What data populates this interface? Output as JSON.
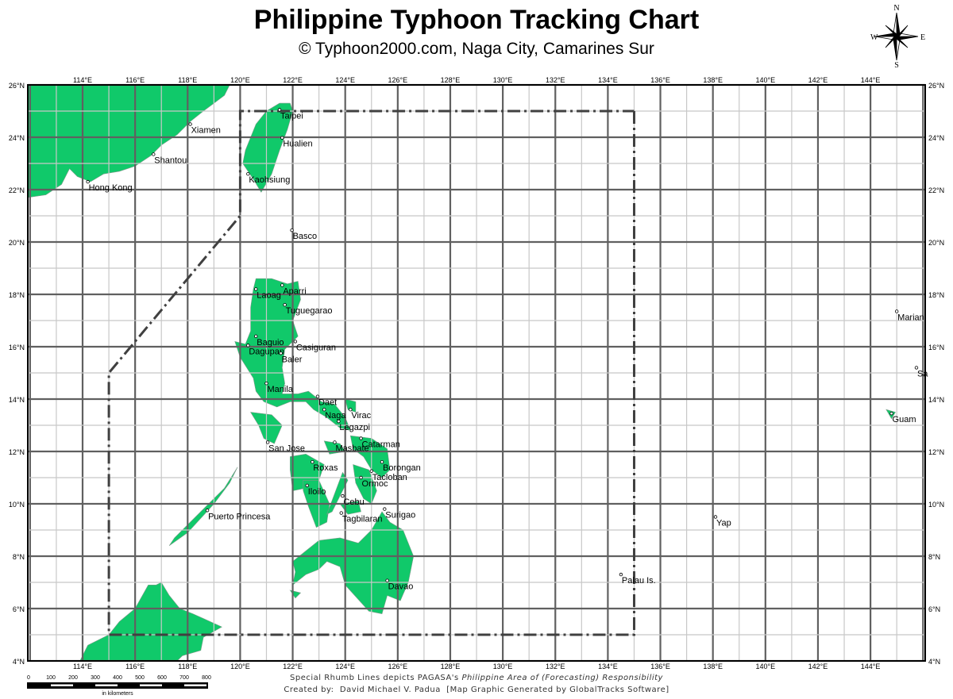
{
  "header": {
    "title": "Philippine Typhoon Tracking Chart",
    "subtitle": "© Typhoon2000.com, Naga City, Camarines Sur"
  },
  "compass": {
    "icon": "compass-rose-icon",
    "n": "N",
    "s": "S",
    "e": "E",
    "w": "W"
  },
  "map": {
    "extent": {
      "lon": [
        111.9,
        146.1
      ],
      "lat": [
        4,
        26
      ]
    },
    "land_color": "#10c96a",
    "grid_minor_color": "#c8c8c8",
    "grid_major_color": "#606060",
    "par_line_color": "#404040",
    "lat_labels": [
      "26°N",
      "24°N",
      "22°N",
      "20°N",
      "18°N",
      "16°N",
      "14°N",
      "12°N",
      "10°N",
      "8°N",
      "6°N",
      "4°N"
    ],
    "lon_labels": [
      "114°E",
      "116°E",
      "118°E",
      "120°E",
      "122°E",
      "124°E",
      "126°E",
      "128°E",
      "130°E",
      "132°E",
      "134°E",
      "136°E",
      "138°E",
      "140°E",
      "142°E",
      "144°E"
    ],
    "par_boundary": [
      [
        135,
        25
      ],
      [
        135,
        5
      ],
      [
        115,
        5
      ],
      [
        115,
        15
      ],
      [
        120,
        21
      ],
      [
        120,
        25
      ],
      [
        135,
        25
      ]
    ],
    "cities": [
      {
        "name": "Taipei",
        "lon": 121.5,
        "lat": 25.05
      },
      {
        "name": "Hualien",
        "lon": 121.6,
        "lat": 23.98
      },
      {
        "name": "Kaohsiung",
        "lon": 120.3,
        "lat": 22.6
      },
      {
        "name": "Basco",
        "lon": 121.97,
        "lat": 20.45
      },
      {
        "name": "Xiamen",
        "lon": 118.1,
        "lat": 24.5
      },
      {
        "name": "Shantou",
        "lon": 116.7,
        "lat": 23.35
      },
      {
        "name": "Hong Kong",
        "lon": 114.2,
        "lat": 22.3
      },
      {
        "name": "Laoag",
        "lon": 120.6,
        "lat": 18.2
      },
      {
        "name": "Aparri",
        "lon": 121.6,
        "lat": 18.35
      },
      {
        "name": "Tuguegarao",
        "lon": 121.7,
        "lat": 17.6
      },
      {
        "name": "Baguio",
        "lon": 120.6,
        "lat": 16.4
      },
      {
        "name": "Dagupan",
        "lon": 120.3,
        "lat": 16.05
      },
      {
        "name": "Casiguran",
        "lon": 122.1,
        "lat": 16.2
      },
      {
        "name": "Baler",
        "lon": 121.55,
        "lat": 15.75
      },
      {
        "name": "Manila",
        "lon": 121.0,
        "lat": 14.6
      },
      {
        "name": "Daet",
        "lon": 122.95,
        "lat": 14.1
      },
      {
        "name": "Naga",
        "lon": 123.2,
        "lat": 13.6
      },
      {
        "name": "Virac",
        "lon": 124.2,
        "lat": 13.6
      },
      {
        "name": "Legazpi",
        "lon": 123.75,
        "lat": 13.15
      },
      {
        "name": "Catarman",
        "lon": 124.6,
        "lat": 12.5
      },
      {
        "name": "Masbate",
        "lon": 123.6,
        "lat": 12.35
      },
      {
        "name": "San Jose",
        "lon": 121.05,
        "lat": 12.35
      },
      {
        "name": "Roxas",
        "lon": 122.75,
        "lat": 11.6
      },
      {
        "name": "Borongan",
        "lon": 125.4,
        "lat": 11.6
      },
      {
        "name": "Tacloban",
        "lon": 125.0,
        "lat": 11.25
      },
      {
        "name": "Ormoc",
        "lon": 124.6,
        "lat": 11.0
      },
      {
        "name": "Iloilo",
        "lon": 122.55,
        "lat": 10.7
      },
      {
        "name": "Cebu",
        "lon": 123.9,
        "lat": 10.3
      },
      {
        "name": "Tagbilaran",
        "lon": 123.85,
        "lat": 9.65
      },
      {
        "name": "Surigao",
        "lon": 125.5,
        "lat": 9.8
      },
      {
        "name": "Puerto Princesa",
        "lon": 118.75,
        "lat": 9.75
      },
      {
        "name": "Davao",
        "lon": 125.6,
        "lat": 7.07
      },
      {
        "name": "Palau Is.",
        "lon": 134.5,
        "lat": 7.3
      },
      {
        "name": "Yap",
        "lon": 138.1,
        "lat": 9.5
      },
      {
        "name": "Guam",
        "lon": 144.8,
        "lat": 13.45
      },
      {
        "name": "Sa",
        "lon": 145.75,
        "lat": 15.2
      },
      {
        "name": "Marian",
        "lon": 145.0,
        "lat": 17.35
      }
    ]
  },
  "scale": {
    "labels": [
      "0",
      "100",
      "200",
      "300",
      "400",
      "500",
      "600",
      "700",
      "800"
    ],
    "unit": "in kilometers"
  },
  "footer": {
    "line1_a": "Special Rhumb Lines depicts PAGASA's ",
    "line1_b": "Philippine Area of (Forecasting) Responsibility",
    "line2": "Created by:  David Michael V. Padua  [Map Graphic Generated by GlobalTracks Software]"
  }
}
